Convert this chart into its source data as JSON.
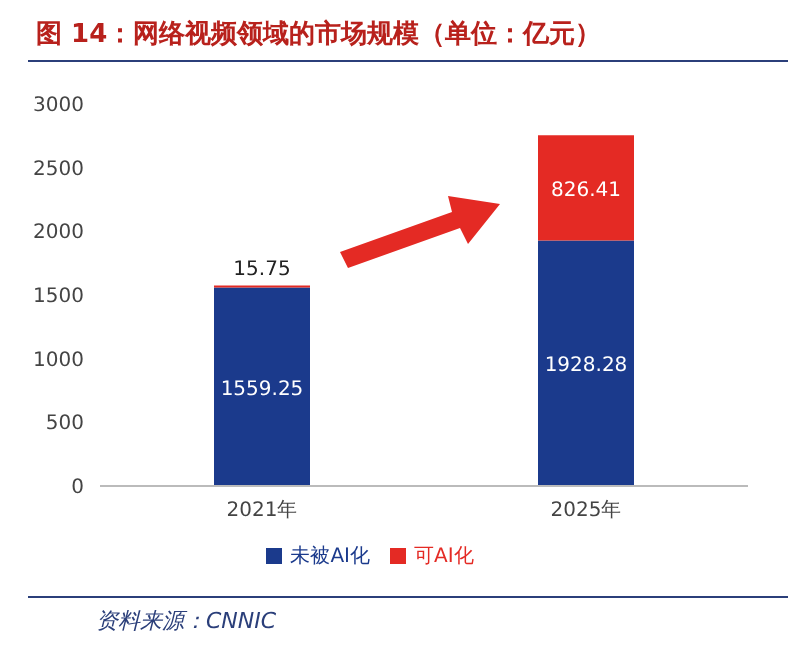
{
  "chart_data": {
    "type": "bar",
    "title": "图 14：网络视频领域的市场规模（单位：亿元）",
    "categories": [
      "2021年",
      "2025年"
    ],
    "series": [
      {
        "name": "未被AI化",
        "color": "#1b3a8c",
        "values": [
          1559.25,
          1928.28
        ]
      },
      {
        "name": "可AI化",
        "color": "#e42a24",
        "values": [
          15.75,
          826.41
        ]
      }
    ],
    "stacked": true,
    "ylim": [
      0,
      3000
    ],
    "yticks": [
      0,
      500,
      1000,
      1500,
      2000,
      2500,
      3000
    ],
    "grid": false,
    "legend": "bottom",
    "data_labels": true,
    "annotations": [
      "资料来源：CNNIC"
    ]
  }
}
